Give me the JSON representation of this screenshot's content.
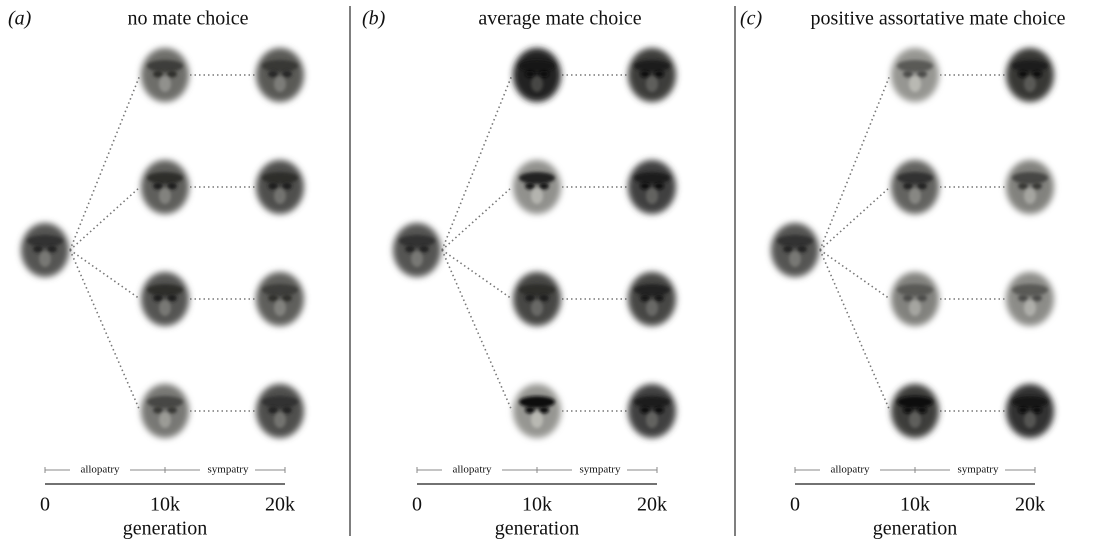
{
  "panels": [
    {
      "label": "(a)",
      "title": "no mate choice",
      "phases": [
        "allopatry",
        "sympatry"
      ],
      "ticks": [
        "0",
        "10k",
        "20k"
      ],
      "axis_label": "generation"
    },
    {
      "label": "(b)",
      "title": "average mate choice",
      "phases": [
        "allopatry",
        "sympatry"
      ],
      "ticks": [
        "0",
        "10k",
        "20k"
      ],
      "axis_label": "generation"
    },
    {
      "label": "(c)",
      "title": "positive assortative mate choice",
      "phases": [
        "allopatry",
        "sympatry"
      ],
      "ticks": [
        "0",
        "10k",
        "20k"
      ],
      "axis_label": "generation"
    }
  ]
}
